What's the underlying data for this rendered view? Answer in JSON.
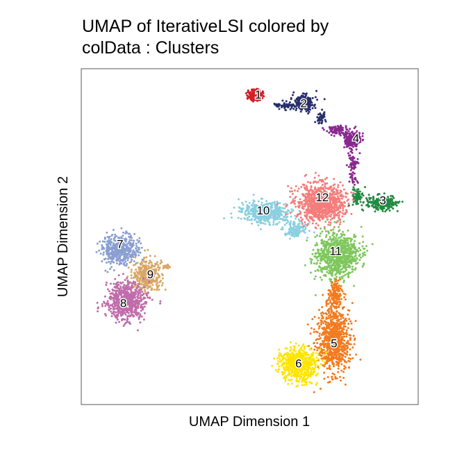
{
  "chart_data": {
    "type": "scatter",
    "title_line1": "UMAP of IterativeLSI  colored by",
    "title_line2": "colData :  Clusters",
    "xlabel": "UMAP Dimension 1",
    "ylabel": "UMAP Dimension 2",
    "xlim": [
      0,
      100
    ],
    "ylim": [
      0,
      100
    ],
    "grid": false,
    "legend": "none",
    "clusters": [
      {
        "label": "1",
        "color": "#D51F26",
        "x": 52.5,
        "y": 92.0
      },
      {
        "label": "2",
        "color": "#272E6A",
        "x": 66.0,
        "y": 89.5
      },
      {
        "label": "4",
        "color": "#89288F",
        "x": 81.5,
        "y": 79.0
      },
      {
        "label": "3",
        "color": "#208A42",
        "x": 89.5,
        "y": 60.5
      },
      {
        "label": "12",
        "color": "#F47D7B",
        "x": 71.5,
        "y": 61.5
      },
      {
        "label": "10",
        "color": "#8AD0E0",
        "x": 54.0,
        "y": 57.5
      },
      {
        "label": "11",
        "color": "#7EC75D",
        "x": 75.5,
        "y": 45.5
      },
      {
        "label": "5",
        "color": "#F37B1F",
        "x": 75.0,
        "y": 18.0
      },
      {
        "label": "6",
        "color": "#FEE500",
        "x": 64.5,
        "y": 12.0
      },
      {
        "label": "7",
        "color": "#8A9FD1",
        "x": 11.5,
        "y": 47.5
      },
      {
        "label": "9",
        "color": "#D8A767",
        "x": 20.5,
        "y": 38.5
      },
      {
        "label": "8",
        "color": "#C06CAB",
        "x": 12.5,
        "y": 30.0
      }
    ]
  }
}
